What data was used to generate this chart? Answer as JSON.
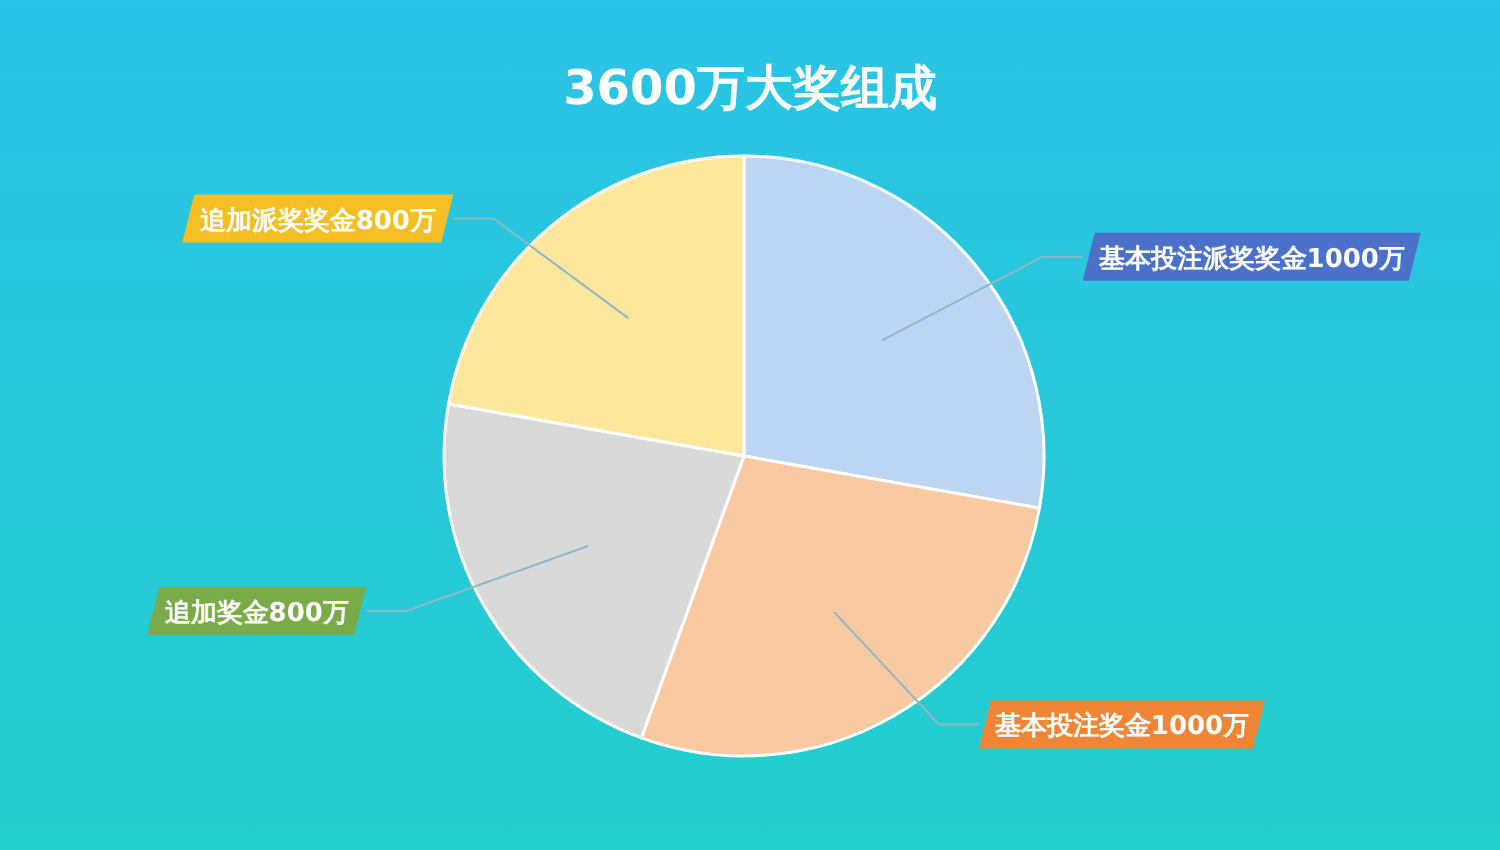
{
  "chart_data": {
    "type": "pie",
    "title": "3600万大奖组成",
    "categories": [
      "基本投注派奖奖金",
      "基本投注奖金",
      "追加奖金",
      "追加派奖奖金"
    ],
    "values": [
      1000,
      1000,
      800,
      800
    ],
    "value_labels": [
      "1000万",
      "1000万",
      "800万",
      "800万"
    ],
    "colors": [
      "#bcd5f2",
      "#f9c9a2",
      "#d9d9d9",
      "#fde79c"
    ],
    "legend": false
  }
}
